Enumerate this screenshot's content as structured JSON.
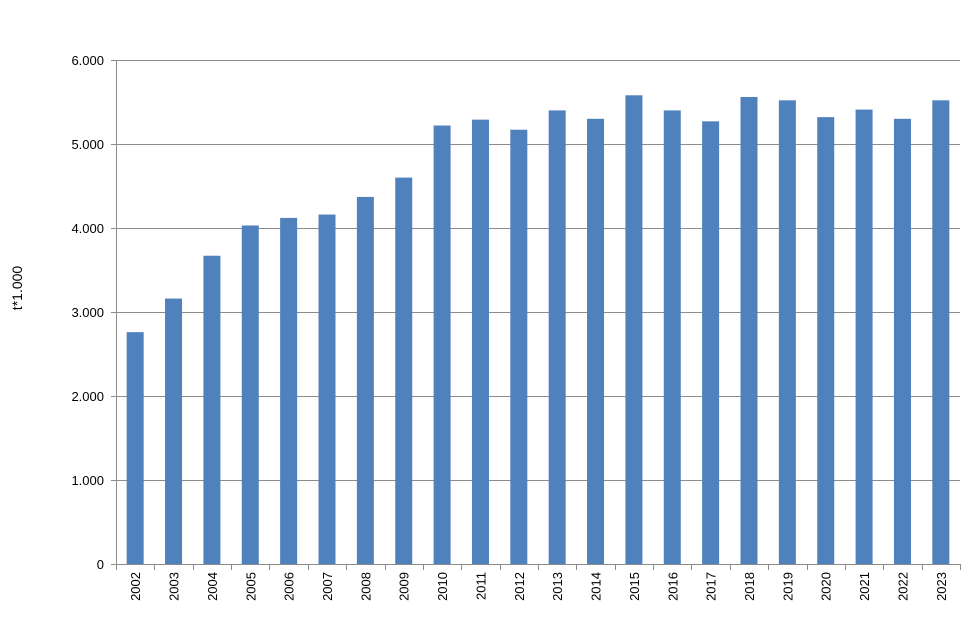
{
  "chart_data": {
    "type": "bar",
    "title": "",
    "xlabel": "",
    "ylabel": "t*1.000",
    "ylim": [
      0,
      6000
    ],
    "yticks": [
      0,
      1000,
      2000,
      3000,
      4000,
      5000,
      6000
    ],
    "ytick_labels": [
      "0",
      "1.000",
      "2.000",
      "3.000",
      "4.000",
      "5.000",
      "6.000"
    ],
    "grid": true,
    "legend": "none",
    "bar_color": "#4f81bd",
    "categories": [
      "2002",
      "2003",
      "2004",
      "2005",
      "2006",
      "2007",
      "2008",
      "2009",
      "2010",
      "2011",
      "2012",
      "2013",
      "2014",
      "2015",
      "2016",
      "2017",
      "2018",
      "2019",
      "2020",
      "2021",
      "2022",
      "2023"
    ],
    "values": [
      2760,
      3160,
      3670,
      4030,
      4120,
      4160,
      4370,
      4600,
      5220,
      5290,
      5170,
      5400,
      5300,
      5580,
      5400,
      5270,
      5560,
      5520,
      5320,
      5410,
      5300,
      5520
    ]
  }
}
